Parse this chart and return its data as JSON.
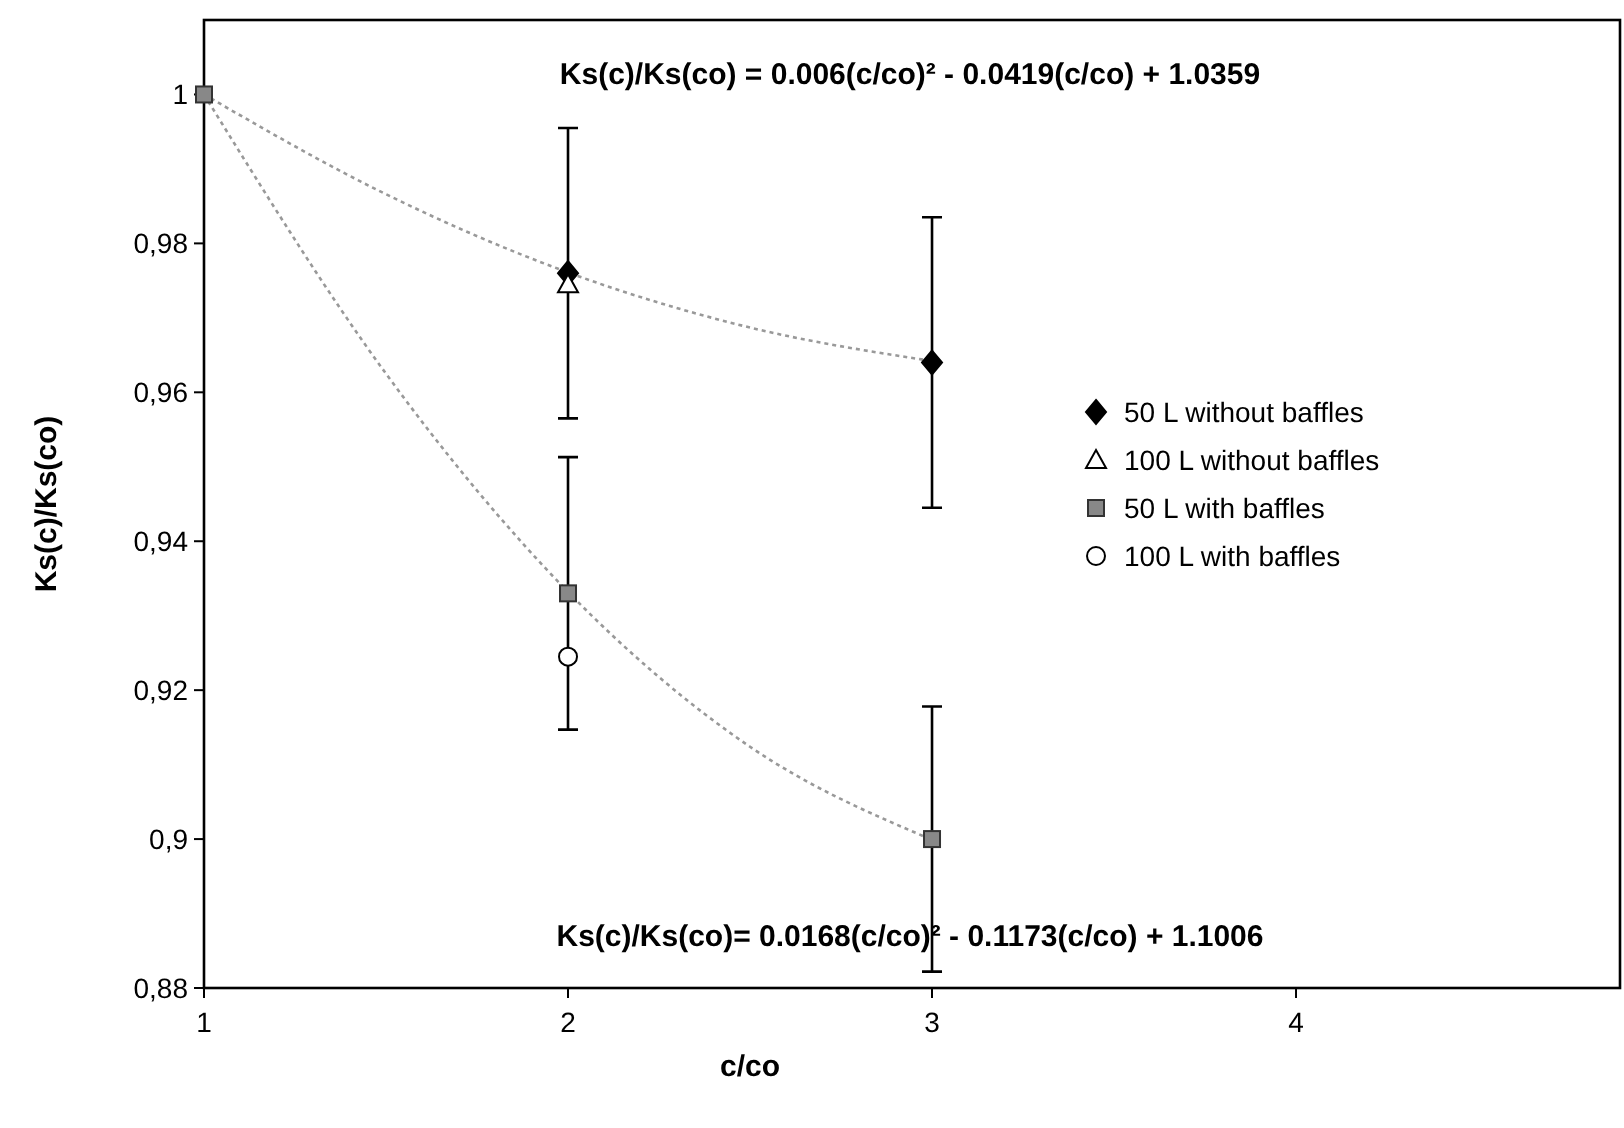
{
  "chart_data": {
    "type": "scatter",
    "xlabel": "c/co",
    "ylabel": "Ks(c)/Ks(co)",
    "xlim": [
      1,
      4.89
    ],
    "xticks": [
      1,
      2,
      3,
      4
    ],
    "ylim": [
      0.88,
      1.01
    ],
    "yticks": [
      {
        "value": 0.88,
        "label": "0,88"
      },
      {
        "value": 0.9,
        "label": "0,9"
      },
      {
        "value": 0.92,
        "label": "0,92"
      },
      {
        "value": 0.94,
        "label": "0,94"
      },
      {
        "value": 0.96,
        "label": "0,96"
      },
      {
        "value": 0.98,
        "label": "0,98"
      },
      {
        "value": 1,
        "label": "1"
      }
    ],
    "grid": false,
    "legend": "right",
    "annotations": [
      "Ks(c)/Ks(co) = 0.006(c/co)² - 0.0419(c/co) + 1.0359",
      "Ks(c)/Ks(co)= 0.0168(c/co)² - 0.1173(c/co) + 1.1006"
    ],
    "series": [
      {
        "type": "line",
        "color": "#999999",
        "line_style": "dotted",
        "marker": "none",
        "x": [
          1,
          1.5,
          2,
          2.5,
          3
        ],
        "values": [
          1,
          0.9866,
          0.9761,
          0.9687,
          0.9642
        ]
      },
      {
        "type": "line",
        "color": "#999999",
        "line_style": "dotted",
        "marker": "none",
        "x": [
          1,
          1.5,
          2,
          2.5,
          3
        ],
        "values": [
          1,
          0.9625,
          0.9332,
          0.9124,
          0.8999
        ]
      },
      {
        "name": "50 L without baffles",
        "color": "#000000",
        "marker": "diamond",
        "x": [
          2,
          3
        ],
        "values": [
          0.976,
          0.964
        ],
        "errors": [
          0.0195,
          0.0195
        ]
      },
      {
        "name": "100 L without baffles",
        "color": "#000000",
        "marker": "triangle",
        "x": [
          2
        ],
        "values": [
          0.9745
        ]
      },
      {
        "name": "50 L with baffles",
        "color": "#888888",
        "marker": "square",
        "x": [
          1,
          2,
          3
        ],
        "values": [
          1,
          0.933,
          0.9
        ],
        "errors": [
          null,
          0.0183,
          0.0178
        ]
      },
      {
        "name": "100 L with baffles",
        "color": "#000000",
        "marker": "circle",
        "x": [
          2
        ],
        "values": [
          0.9245
        ]
      }
    ]
  }
}
